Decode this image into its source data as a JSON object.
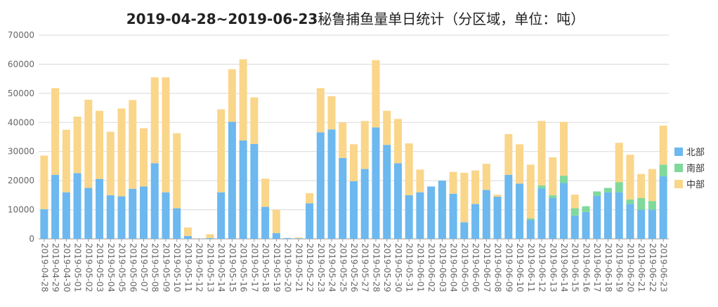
{
  "chart_data": {
    "type": "bar",
    "stacked": true,
    "title_bold": "2019-04-28~2019-06-23",
    "title_rest": "秘鲁捕鱼量单日统计（分区域，单位：吨）",
    "ylim": [
      0,
      70000
    ],
    "yticks": [
      0,
      10000,
      20000,
      30000,
      40000,
      50000,
      60000,
      70000
    ],
    "grid": true,
    "legend_position": "right",
    "categories": [
      "2019-04-28",
      "2019-04-29",
      "2019-04-30",
      "2019-05-01",
      "2019-05-02",
      "2019-05-03",
      "2019-05-04",
      "2019-05-05",
      "2019-05-06",
      "2019-05-07",
      "2019-05-08",
      "2019-05-09",
      "2019-05-10",
      "2019-05-11",
      "2019-05-12",
      "2019-05-13",
      "2019-05-14",
      "2019-05-15",
      "2019-05-16",
      "2019-05-17",
      "2019-05-18",
      "2019-05-19",
      "2019-05-20",
      "2019-05-21",
      "2019-05-22",
      "2019-05-23",
      "2019-05-24",
      "2019-05-25",
      "2019-05-26",
      "2019-05-27",
      "2019-05-28",
      "2019-05-29",
      "2019-05-30",
      "2019-05-31",
      "2019-06-01",
      "2019-06-02",
      "2019-06-03",
      "2019-06-04",
      "2019-06-05",
      "2019-06-06",
      "2019-06-07",
      "2019-06-08",
      "2019-06-09",
      "2019-06-10",
      "2019-06-11",
      "2019-06-12",
      "2019-06-13",
      "2019-06-14",
      "2019-06-15",
      "2019-06-16",
      "2019-06-17",
      "2019-06-18",
      "2019-06-19",
      "2019-06-20",
      "2019-06-21",
      "2019-06-22",
      "2019-06-23"
    ],
    "series": [
      {
        "name": "北部",
        "color": "#6cb8ef",
        "values": [
          10200,
          22000,
          16000,
          22600,
          17500,
          20600,
          15000,
          14600,
          17200,
          18000,
          26000,
          16000,
          10500,
          1000,
          0,
          300,
          16000,
          40200,
          33800,
          32600,
          11000,
          2000,
          300,
          200,
          12200,
          36600,
          37600,
          27800,
          19800,
          24000,
          38300,
          32300,
          26000,
          15000,
          16000,
          18000,
          20000,
          15500,
          5700,
          12000,
          16800,
          14500,
          22000,
          19000,
          6500,
          17400,
          14000,
          19200,
          8000,
          9200,
          14800,
          16000,
          16000,
          12000,
          10000,
          10000,
          21500
        ]
      },
      {
        "name": "南部",
        "color": "#7ed99b",
        "values": [
          0,
          0,
          0,
          0,
          0,
          0,
          0,
          0,
          0,
          0,
          0,
          0,
          0,
          0,
          0,
          0,
          0,
          0,
          0,
          0,
          0,
          0,
          0,
          0,
          0,
          0,
          0,
          0,
          0,
          0,
          0,
          0,
          0,
          0,
          0,
          0,
          0,
          0,
          0,
          0,
          0,
          0,
          0,
          0,
          500,
          1000,
          1000,
          2500,
          2500,
          2000,
          1500,
          1500,
          3500,
          1500,
          4000,
          3000,
          4000
        ]
      },
      {
        "name": "中部",
        "color": "#fad68a",
        "values": [
          18400,
          29800,
          21500,
          19400,
          30300,
          23400,
          21800,
          30200,
          30500,
          20000,
          29500,
          39500,
          25800,
          2900,
          0,
          1300,
          28500,
          18100,
          27900,
          16000,
          9700,
          8000,
          0,
          300,
          3500,
          15200,
          11400,
          12200,
          12700,
          16500,
          23100,
          11700,
          15200,
          17800,
          7800,
          0,
          0,
          7500,
          17000,
          11500,
          9000,
          700,
          14000,
          13500,
          18500,
          22100,
          13000,
          18500,
          4700,
          0,
          0,
          0,
          13500,
          15400,
          8300,
          11000,
          13400
        ]
      }
    ]
  }
}
